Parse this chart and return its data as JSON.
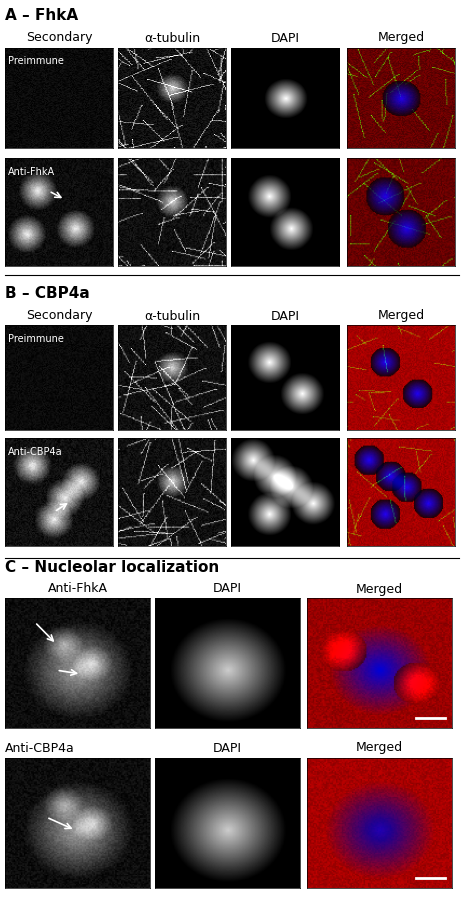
{
  "section_A_title": "A – FhkA",
  "section_B_title": "B – CBP4a",
  "section_C_title": "C – Nucleolar localization",
  "col_labels_AB": [
    "Secondary",
    "α-tubulin",
    "DAPI",
    "Merged"
  ],
  "row_labels_A": [
    "Preimmune",
    "Anti-FhkA"
  ],
  "row_labels_B": [
    "Preimmune",
    "Anti-CBP4a"
  ],
  "col_labels_C": [
    "Anti-FhkA",
    "DAPI",
    "Merged"
  ],
  "row_labels_C": [
    "",
    "Anti-CBP4a"
  ],
  "bg_color": "#ffffff",
  "section_label_fontsize": 11,
  "col_label_fontsize": 9,
  "row_label_fontsize": 8
}
